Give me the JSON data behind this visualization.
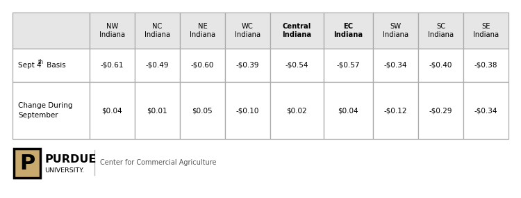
{
  "col_headers": [
    [
      "NW\nIndiana",
      false
    ],
    [
      "NC\nIndiana",
      false
    ],
    [
      "NE\nIndiana",
      false
    ],
    [
      "WC\nIndiana",
      false
    ],
    [
      "Central\nIndiana",
      true
    ],
    [
      "EC\nIndiana",
      true
    ],
    [
      "SW\nIndiana",
      false
    ],
    [
      "SC\nIndiana",
      false
    ],
    [
      "SE\nIndiana",
      false
    ]
  ],
  "row1_values": [
    "-$0.61",
    "-$0.49",
    "-$0.60",
    "-$0.39",
    "-$0.54",
    "-$0.57",
    "-$0.34",
    "-$0.40",
    "-$0.38"
  ],
  "row2_values": [
    "$0.04",
    "$0.01",
    "$0.05",
    "-$0.10",
    "$0.02",
    "$0.04",
    "-$0.12",
    "-$0.29",
    "-$0.34"
  ],
  "header_bg": "#e6e6e6",
  "cell_bg": "#ffffff",
  "border_color": "#aaaaaa",
  "footer_text": "Center for Commercial Agriculture",
  "col_weights": [
    1.4,
    0.82,
    0.82,
    0.82,
    0.82,
    0.97,
    0.9,
    0.82,
    0.82,
    0.82
  ]
}
